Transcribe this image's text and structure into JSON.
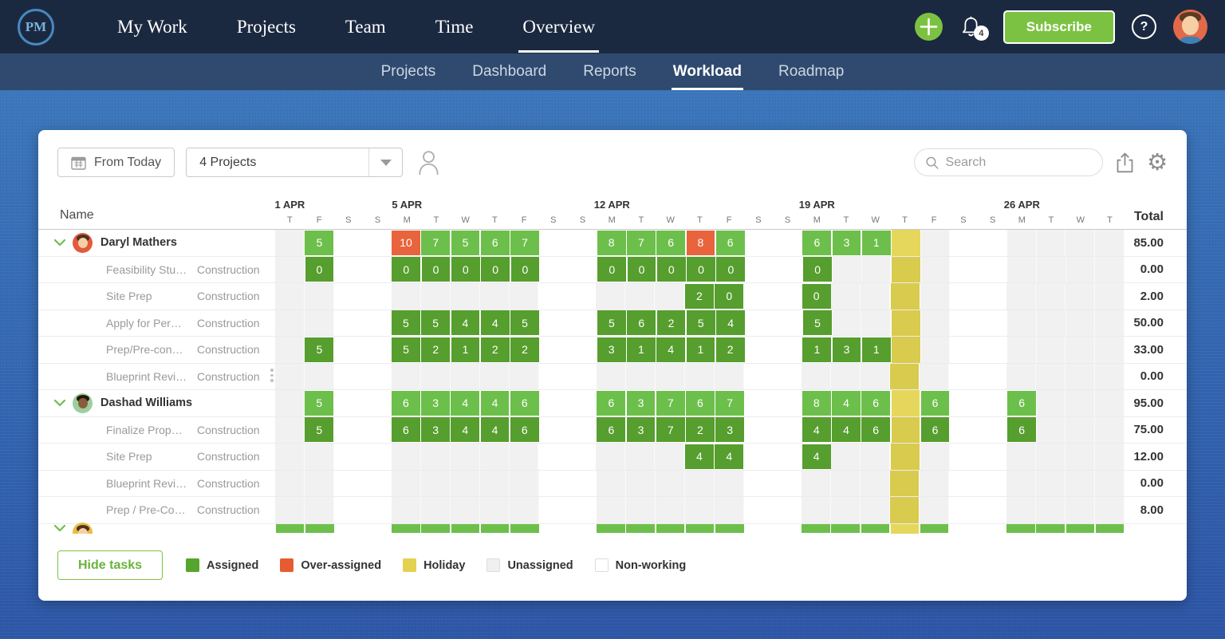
{
  "colors": {
    "topnav_bg": "#1b2940",
    "subnav_bg": "#2f4a6e",
    "page_bg_top": "#3f7cbf",
    "page_bg_bottom": "#2d55a6",
    "accent_green": "#7cc242",
    "assigned_person": "#6dbf4b",
    "assigned_task": "#569e2e",
    "over_assigned": "#e8643c",
    "holiday_person": "#e5d75c",
    "holiday_task": "#d9cb4e",
    "unassigned": "#f1f1f1",
    "non_working": "#ffffff"
  },
  "top_nav": {
    "logo": "PM",
    "items": [
      {
        "label": "My Work",
        "active": false
      },
      {
        "label": "Projects",
        "active": false
      },
      {
        "label": "Team",
        "active": false
      },
      {
        "label": "Time",
        "active": false
      },
      {
        "label": "Overview",
        "active": true
      }
    ],
    "notification_count": "4",
    "subscribe_label": "Subscribe",
    "help_label": "?"
  },
  "sub_nav": {
    "items": [
      {
        "label": "Projects",
        "active": false
      },
      {
        "label": "Dashboard",
        "active": false
      },
      {
        "label": "Reports",
        "active": false
      },
      {
        "label": "Workload",
        "active": true
      },
      {
        "label": "Roadmap",
        "active": false
      }
    ]
  },
  "toolbar": {
    "from_today_label": "From Today",
    "projects_filter": "4 Projects",
    "search_placeholder": "Search"
  },
  "grid": {
    "name_header": "Name",
    "total_header": "Total",
    "day_letters": [
      "T",
      "F",
      "S",
      "S",
      "M",
      "T",
      "W",
      "T",
      "F",
      "S",
      "S",
      "M",
      "T",
      "W",
      "T",
      "F",
      "S",
      "S",
      "M",
      "T",
      "W",
      "T",
      "F",
      "S",
      "S",
      "M",
      "T",
      "W",
      "T"
    ],
    "week_labels": {
      "0": "1 APR",
      "4": "5 APR",
      "11": "12 APR",
      "18": "19 APR",
      "25": "26 APR"
    },
    "weekend_cols": [
      2,
      3,
      9,
      10,
      16,
      17,
      23,
      24
    ],
    "holiday_col": 21,
    "rows": [
      {
        "type": "person",
        "name": "Daryl Mathers",
        "avatar": {
          "bg": "#e25a3c",
          "skin": "#f6cfa4",
          "hair": "#4f3222"
        },
        "total": "85.00",
        "cells": [
          {
            "c": 1,
            "v": "5"
          },
          {
            "c": 4,
            "v": "10",
            "over": true
          },
          {
            "c": 5,
            "v": "7"
          },
          {
            "c": 6,
            "v": "5"
          },
          {
            "c": 7,
            "v": "6"
          },
          {
            "c": 8,
            "v": "7"
          },
          {
            "c": 11,
            "v": "8"
          },
          {
            "c": 12,
            "v": "7"
          },
          {
            "c": 13,
            "v": "6"
          },
          {
            "c": 14,
            "v": "8",
            "over": true
          },
          {
            "c": 15,
            "v": "6"
          },
          {
            "c": 18,
            "v": "6"
          },
          {
            "c": 19,
            "v": "3"
          },
          {
            "c": 20,
            "v": "1"
          }
        ]
      },
      {
        "type": "task",
        "name": "Feasibility Stu…",
        "project": "Construction",
        "total": "0.00",
        "cells": [
          {
            "c": 1,
            "v": "0"
          },
          {
            "c": 4,
            "v": "0"
          },
          {
            "c": 5,
            "v": "0"
          },
          {
            "c": 6,
            "v": "0"
          },
          {
            "c": 7,
            "v": "0"
          },
          {
            "c": 8,
            "v": "0"
          },
          {
            "c": 11,
            "v": "0"
          },
          {
            "c": 12,
            "v": "0"
          },
          {
            "c": 13,
            "v": "0"
          },
          {
            "c": 14,
            "v": "0"
          },
          {
            "c": 15,
            "v": "0"
          },
          {
            "c": 18,
            "v": "0"
          }
        ]
      },
      {
        "type": "task",
        "name": "Site Prep",
        "project": "Construction",
        "total": "2.00",
        "cells": [
          {
            "c": 14,
            "v": "2"
          },
          {
            "c": 15,
            "v": "0"
          },
          {
            "c": 18,
            "v": "0"
          }
        ]
      },
      {
        "type": "task",
        "name": "Apply for Per…",
        "project": "Construction",
        "total": "50.00",
        "cells": [
          {
            "c": 4,
            "v": "5"
          },
          {
            "c": 5,
            "v": "5"
          },
          {
            "c": 6,
            "v": "4"
          },
          {
            "c": 7,
            "v": "4"
          },
          {
            "c": 8,
            "v": "5"
          },
          {
            "c": 11,
            "v": "5"
          },
          {
            "c": 12,
            "v": "6"
          },
          {
            "c": 13,
            "v": "2"
          },
          {
            "c": 14,
            "v": "5"
          },
          {
            "c": 15,
            "v": "4"
          },
          {
            "c": 18,
            "v": "5"
          }
        ]
      },
      {
        "type": "task",
        "name": "Prep/Pre-con…",
        "project": "Construction",
        "total": "33.00",
        "cells": [
          {
            "c": 1,
            "v": "5"
          },
          {
            "c": 4,
            "v": "5"
          },
          {
            "c": 5,
            "v": "2"
          },
          {
            "c": 6,
            "v": "1"
          },
          {
            "c": 7,
            "v": "2"
          },
          {
            "c": 8,
            "v": "2"
          },
          {
            "c": 11,
            "v": "3"
          },
          {
            "c": 12,
            "v": "1"
          },
          {
            "c": 13,
            "v": "4"
          },
          {
            "c": 14,
            "v": "1"
          },
          {
            "c": 15,
            "v": "2"
          },
          {
            "c": 18,
            "v": "1"
          },
          {
            "c": 19,
            "v": "3"
          },
          {
            "c": 20,
            "v": "1"
          }
        ]
      },
      {
        "type": "task",
        "name": "Blueprint Revi…",
        "project": "Construction",
        "total": "0.00",
        "cells": []
      },
      {
        "type": "person",
        "name": "Dashad Williams",
        "avatar": {
          "bg": "#9bcf9d",
          "skin": "#8a5c3b",
          "hair": "#26180e"
        },
        "total": "95.00",
        "cells": [
          {
            "c": 1,
            "v": "5"
          },
          {
            "c": 4,
            "v": "6"
          },
          {
            "c": 5,
            "v": "3"
          },
          {
            "c": 6,
            "v": "4"
          },
          {
            "c": 7,
            "v": "4"
          },
          {
            "c": 8,
            "v": "6"
          },
          {
            "c": 11,
            "v": "6"
          },
          {
            "c": 12,
            "v": "3"
          },
          {
            "c": 13,
            "v": "7"
          },
          {
            "c": 14,
            "v": "6"
          },
          {
            "c": 15,
            "v": "7"
          },
          {
            "c": 18,
            "v": "8"
          },
          {
            "c": 19,
            "v": "4"
          },
          {
            "c": 20,
            "v": "6"
          },
          {
            "c": 22,
            "v": "6"
          },
          {
            "c": 25,
            "v": "6"
          }
        ]
      },
      {
        "type": "task",
        "name": "Finalize Prop…",
        "project": "Construction",
        "total": "75.00",
        "cells": [
          {
            "c": 1,
            "v": "5"
          },
          {
            "c": 4,
            "v": "6"
          },
          {
            "c": 5,
            "v": "3"
          },
          {
            "c": 6,
            "v": "4"
          },
          {
            "c": 7,
            "v": "4"
          },
          {
            "c": 8,
            "v": "6"
          },
          {
            "c": 11,
            "v": "6"
          },
          {
            "c": 12,
            "v": "3"
          },
          {
            "c": 13,
            "v": "7"
          },
          {
            "c": 14,
            "v": "2"
          },
          {
            "c": 15,
            "v": "3"
          },
          {
            "c": 18,
            "v": "4"
          },
          {
            "c": 19,
            "v": "4"
          },
          {
            "c": 20,
            "v": "6"
          },
          {
            "c": 22,
            "v": "6"
          },
          {
            "c": 25,
            "v": "6"
          }
        ]
      },
      {
        "type": "task",
        "name": "Site Prep",
        "project": "Construction",
        "total": "12.00",
        "cells": [
          {
            "c": 14,
            "v": "4"
          },
          {
            "c": 15,
            "v": "4"
          },
          {
            "c": 18,
            "v": "4"
          }
        ]
      },
      {
        "type": "task",
        "name": "Blueprint Revi…",
        "project": "Construction",
        "total": "0.00",
        "cells": []
      },
      {
        "type": "task",
        "name": "Prep / Pre-Co…",
        "project": "Construction",
        "total": "8.00",
        "cells": []
      },
      {
        "type": "person-partial",
        "name": "",
        "avatar": {
          "bg": "#e9bd3e",
          "skin": "#f6cfa4",
          "hair": "#4f3222"
        },
        "total": "",
        "cells": [
          {
            "c": 0,
            "v": ""
          },
          {
            "c": 1,
            "v": ""
          },
          {
            "c": 4,
            "v": ""
          },
          {
            "c": 5,
            "v": ""
          },
          {
            "c": 6,
            "v": ""
          },
          {
            "c": 7,
            "v": ""
          },
          {
            "c": 8,
            "v": ""
          },
          {
            "c": 11,
            "v": ""
          },
          {
            "c": 12,
            "v": ""
          },
          {
            "c": 13,
            "v": ""
          },
          {
            "c": 14,
            "v": ""
          },
          {
            "c": 15,
            "v": ""
          },
          {
            "c": 18,
            "v": ""
          },
          {
            "c": 19,
            "v": ""
          },
          {
            "c": 20,
            "v": ""
          },
          {
            "c": 22,
            "v": ""
          },
          {
            "c": 25,
            "v": ""
          },
          {
            "c": 26,
            "v": ""
          },
          {
            "c": 27,
            "v": ""
          },
          {
            "c": 28,
            "v": ""
          }
        ]
      }
    ]
  },
  "legend": {
    "hide_tasks_label": "Hide tasks",
    "items": [
      {
        "label": "Assigned",
        "color": "#55a52e",
        "bordered": false
      },
      {
        "label": "Over-assigned",
        "color": "#e65c30",
        "bordered": false
      },
      {
        "label": "Holiday",
        "color": "#e3d14f",
        "bordered": false
      },
      {
        "label": "Unassigned",
        "color": "#f0f0f0",
        "bordered": true
      },
      {
        "label": "Non-working",
        "color": "#ffffff",
        "bordered": true
      }
    ]
  }
}
